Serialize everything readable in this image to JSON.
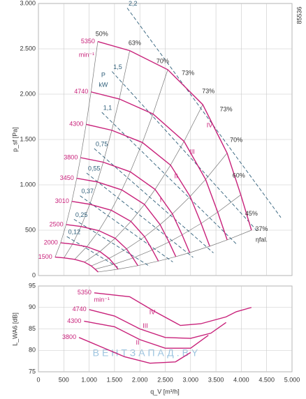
{
  "chart_data": [
    {
      "type": "line",
      "ylabel": "p_sf [Pa]",
      "corner_label": "85536",
      "xlim": [
        0,
        5000
      ],
      "ylim": [
        0,
        3000
      ],
      "yticks": [
        0,
        500,
        {
          "value": 1000,
          "label": "1.000"
        },
        {
          "value": 1500,
          "label": "1.500"
        },
        {
          "value": 2000,
          "label": "2.000"
        },
        {
          "value": 2500,
          "label": "2.500"
        },
        {
          "value": 3000,
          "label": "3.000"
        }
      ],
      "grid": true,
      "color": "#c8217a",
      "power_color": "#2f5f7a",
      "efficiency_color": "#777777",
      "series": [
        {
          "name": "5350",
          "x": [
            1170,
            1800,
            2550,
            3240,
            3720,
            3990,
            4200
          ],
          "values": [
            2580,
            2480,
            2270,
            1885,
            1350,
            890,
            500
          ]
        },
        {
          "name": "4740",
          "x": [
            1037,
            1595,
            2259,
            2871,
            3296,
            3535,
            3721
          ],
          "values": [
            2025,
            1947,
            1782,
            1480,
            1060,
            699,
            393
          ]
        },
        {
          "name": "4300",
          "x": [
            941,
            1447,
            2050,
            2605,
            2991,
            3208,
            3377
          ],
          "values": [
            1667,
            1602,
            1467,
            1218,
            872,
            575,
            323
          ]
        },
        {
          "name": "3800",
          "x": [
            831,
            1278,
            1811,
            2300,
            2641,
            2833,
            2982
          ],
          "values": [
            1300,
            1250,
            1144,
            950,
            680,
            449,
            252
          ]
        },
        {
          "name": "3450",
          "x": [
            755,
            1161,
            1645,
            2090,
            2399,
            2574,
            2709
          ],
          "values": [
            1073,
            1032,
            944,
            784,
            562,
            370,
            208
          ]
        },
        {
          "name": "3010",
          "x": [
            659,
            1013,
            1436,
            1824,
            2094,
            2246,
            2365
          ],
          "values": [
            818,
            786,
            720,
            597,
            428,
            282,
            159
          ]
        },
        {
          "name": "2500",
          "x": [
            546,
            841,
            1191,
            1513,
            1737,
            1863,
            1961
          ],
          "values": [
            562,
            541,
            495,
            411,
            294,
            194,
            109
          ]
        },
        {
          "name": "2000",
          "x": [
            438,
            673,
            954,
            1212,
            1391,
            1492,
            1571
          ],
          "values": [
            361,
            347,
            318,
            264,
            189,
            125,
            70
          ]
        },
        {
          "name": "1500",
          "x": [
            328,
            504,
            714,
            907,
            1042,
            1117,
            1177
          ],
          "values": [
            203,
            195,
            178,
            148,
            106,
            70,
            39
          ]
        }
      ],
      "power_lines": [
        {
          "label": "2,2",
          "x": [
            1750,
            4780
          ],
          "y": [
            2950,
            640
          ]
        },
        {
          "label": "1,5",
          "x": [
            1450,
            4300
          ],
          "y": [
            2250,
            500
          ]
        },
        {
          "label": "1,1",
          "x": [
            1250,
            3900
          ],
          "y": [
            1800,
            350
          ]
        },
        {
          "label": "0,75",
          "x": [
            1100,
            3450
          ],
          "y": [
            1400,
            250
          ]
        },
        {
          "label": "0,55",
          "x": [
            950,
            3050
          ],
          "y": [
            1130,
            200
          ]
        },
        {
          "label": "0,37",
          "x": [
            820,
            2650
          ],
          "y": [
            880,
            150
          ]
        },
        {
          "label": "0,25",
          "x": [
            700,
            2200
          ],
          "y": [
            620,
            100
          ]
        },
        {
          "label": "0,12",
          "x": [
            560,
            1600
          ],
          "y": [
            430,
            80
          ]
        }
      ],
      "annotations": [
        {
          "text": "min⁻¹",
          "x": 950,
          "y": 2430,
          "color": "#c8217a"
        },
        {
          "text": "P",
          "x": 1280,
          "y": 2208,
          "color": "#2f5f7a"
        },
        {
          "text": "kW",
          "x": 1280,
          "y": 2100,
          "color": "#2f5f7a"
        },
        {
          "text": "50%",
          "x": 1250,
          "y": 2660
        },
        {
          "text": "63%",
          "x": 1900,
          "y": 2560
        },
        {
          "text": "70%",
          "x": 2450,
          "y": 2360
        },
        {
          "text": "73%",
          "x": 2950,
          "y": 2230
        },
        {
          "text": "73%",
          "x": 3350,
          "y": 2030
        },
        {
          "text": "73%",
          "x": 3700,
          "y": 1830
        },
        {
          "text": "70%",
          "x": 3900,
          "y": 1490
        },
        {
          "text": "60%",
          "x": 3950,
          "y": 1100
        },
        {
          "text": "45%",
          "x": 4200,
          "y": 680
        },
        {
          "text": "37%",
          "x": 4400,
          "y": 510
        },
        {
          "text": "ηfal.",
          "x": 4400,
          "y": 390
        },
        {
          "text": "IV",
          "x": 3375,
          "y": 1654,
          "color": "#c8217a"
        },
        {
          "text": "III",
          "x": 3030,
          "y": 1362,
          "color": "#c8217a"
        },
        {
          "text": "II",
          "x": 2713,
          "y": 1092,
          "color": "#c8217a"
        },
        {
          "text": "I",
          "x": 2410,
          "y": 831,
          "color": "#c8217a"
        }
      ]
    },
    {
      "type": "line",
      "ylabel": "L_WA6 [dB]",
      "xlabel": "q_V [m³/h]",
      "watermark": "ВЕНТЗАПАД.BY",
      "xlim": [
        0,
        5000
      ],
      "ylim": [
        75,
        95
      ],
      "xticks": [
        0,
        500,
        {
          "value": 1000,
          "label": "1.000"
        },
        {
          "value": 1500,
          "label": "1.500"
        },
        {
          "value": 2000,
          "label": "2.000"
        },
        {
          "value": 2500,
          "label": "2.500"
        },
        {
          "value": 3000,
          "label": "3.000"
        },
        {
          "value": 3500,
          "label": "3.500"
        },
        {
          "value": 4000,
          "label": "4.000"
        },
        {
          "value": 4500,
          "label": "4.500"
        },
        {
          "value": 5000,
          "label": "5.000"
        }
      ],
      "yticks": [
        75,
        80,
        85,
        90,
        95
      ],
      "grid": true,
      "color": "#c8217a",
      "series": [
        {
          "name": "5350",
          "x": [
            1100,
            1800,
            2300,
            2800,
            3200,
            3700,
            3900,
            4200
          ],
          "values": [
            93.4,
            92.5,
            89,
            85.8,
            86.2,
            87.8,
            89,
            90
          ]
        },
        {
          "name": "4740",
          "x": [
            1000,
            1500,
            2000,
            2500,
            3000,
            3400,
            3700
          ],
          "values": [
            89.5,
            88,
            85,
            83,
            82.8,
            84,
            86.5
          ]
        },
        {
          "name": "4300",
          "x": [
            900,
            1500,
            2000,
            2500,
            3000,
            3350
          ],
          "values": [
            86.8,
            85.5,
            82.5,
            80.5,
            80.5,
            83.5
          ]
        },
        {
          "name": "3800",
          "x": [
            800,
            1200,
            1700,
            2200,
            2700,
            3000
          ],
          "values": [
            83,
            81,
            78.5,
            77,
            77.3,
            79.5
          ]
        }
      ],
      "annotations": [
        {
          "text": "min⁻¹",
          "x": 1250,
          "y": 91.7,
          "color": "#c8217a"
        },
        {
          "text": "IV",
          "x": 2245,
          "y": 88.8,
          "color": "#c8217a"
        },
        {
          "text": "III",
          "x": 2107,
          "y": 85.6,
          "color": "#c8217a"
        },
        {
          "text": "II",
          "x": 1956,
          "y": 81.7,
          "color": "#c8217a"
        }
      ]
    }
  ]
}
